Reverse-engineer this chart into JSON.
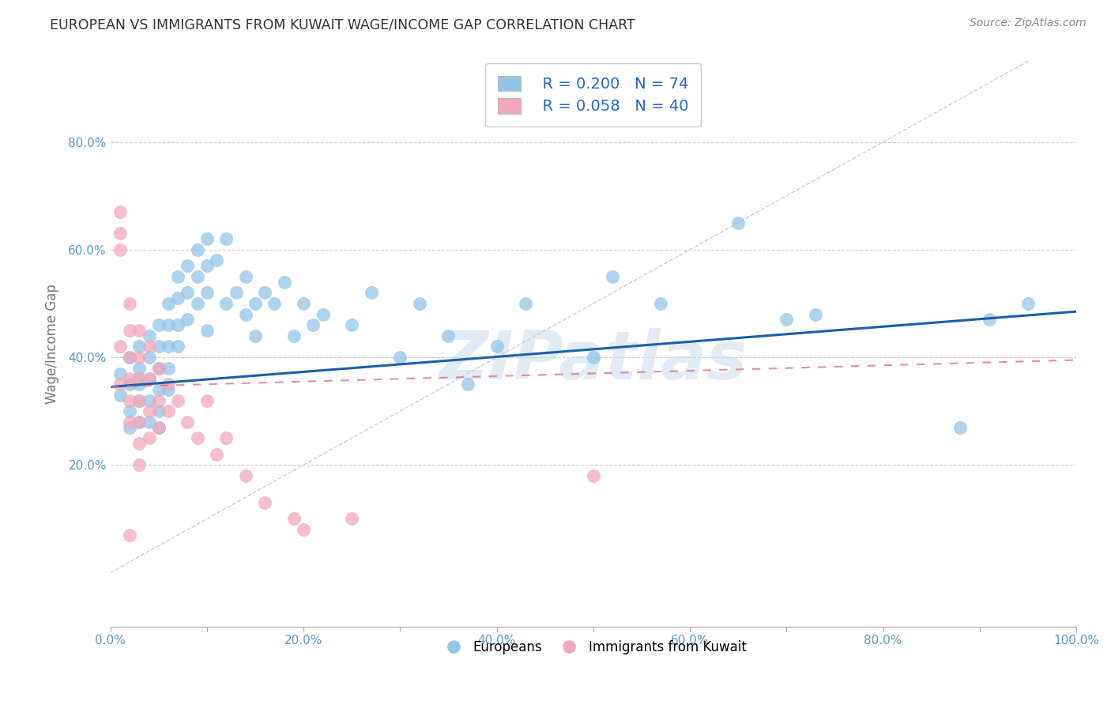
{
  "title": "EUROPEAN VS IMMIGRANTS FROM KUWAIT WAGE/INCOME GAP CORRELATION CHART",
  "source": "Source: ZipAtlas.com",
  "ylabel": "Wage/Income Gap",
  "xlabel": "",
  "xlim": [
    0.0,
    1.0
  ],
  "ylim": [
    -0.1,
    0.95
  ],
  "xtick_labels": [
    "0.0%",
    "",
    "20.0%",
    "",
    "40.0%",
    "",
    "60.0%",
    "",
    "80.0%",
    "",
    "100.0%"
  ],
  "xtick_vals": [
    0.0,
    0.1,
    0.2,
    0.3,
    0.4,
    0.5,
    0.6,
    0.7,
    0.8,
    0.9,
    1.0
  ],
  "ytick_labels": [
    "20.0%",
    "40.0%",
    "60.0%",
    "80.0%"
  ],
  "ytick_vals": [
    0.2,
    0.4,
    0.6,
    0.8
  ],
  "watermark": "ZIPatlas",
  "legend_r1": "R = 0.200",
  "legend_n1": "N = 74",
  "legend_r2": "R = 0.058",
  "legend_n2": "N = 40",
  "blue_color": "#92C5E8",
  "pink_color": "#F2A8BC",
  "blue_line_color": "#1A5FAB",
  "pink_line_color": "#E07090",
  "background_color": "#FFFFFF",
  "grid_color": "#CCCCCC",
  "europeans_x": [
    0.01,
    0.01,
    0.02,
    0.02,
    0.02,
    0.02,
    0.03,
    0.03,
    0.03,
    0.03,
    0.03,
    0.03,
    0.04,
    0.04,
    0.04,
    0.04,
    0.04,
    0.05,
    0.05,
    0.05,
    0.05,
    0.05,
    0.05,
    0.06,
    0.06,
    0.06,
    0.06,
    0.06,
    0.07,
    0.07,
    0.07,
    0.07,
    0.08,
    0.08,
    0.08,
    0.09,
    0.09,
    0.09,
    0.1,
    0.1,
    0.1,
    0.1,
    0.11,
    0.12,
    0.12,
    0.13,
    0.14,
    0.14,
    0.15,
    0.15,
    0.16,
    0.17,
    0.18,
    0.19,
    0.2,
    0.21,
    0.22,
    0.25,
    0.27,
    0.3,
    0.32,
    0.35,
    0.37,
    0.4,
    0.43,
    0.5,
    0.52,
    0.57,
    0.65,
    0.7,
    0.73,
    0.88,
    0.91,
    0.95
  ],
  "europeans_y": [
    0.37,
    0.33,
    0.4,
    0.35,
    0.3,
    0.27,
    0.42,
    0.38,
    0.35,
    0.32,
    0.28,
    0.36,
    0.44,
    0.4,
    0.36,
    0.32,
    0.28,
    0.46,
    0.42,
    0.38,
    0.34,
    0.3,
    0.27,
    0.5,
    0.46,
    0.42,
    0.38,
    0.34,
    0.55,
    0.51,
    0.46,
    0.42,
    0.57,
    0.52,
    0.47,
    0.6,
    0.55,
    0.5,
    0.62,
    0.57,
    0.52,
    0.45,
    0.58,
    0.62,
    0.5,
    0.52,
    0.55,
    0.48,
    0.5,
    0.44,
    0.52,
    0.5,
    0.54,
    0.44,
    0.5,
    0.46,
    0.48,
    0.46,
    0.52,
    0.4,
    0.5,
    0.44,
    0.35,
    0.42,
    0.5,
    0.4,
    0.55,
    0.5,
    0.65,
    0.47,
    0.48,
    0.27,
    0.47,
    0.5
  ],
  "kuwait_x": [
    0.01,
    0.01,
    0.01,
    0.01,
    0.01,
    0.02,
    0.02,
    0.02,
    0.02,
    0.02,
    0.02,
    0.02,
    0.03,
    0.03,
    0.03,
    0.03,
    0.03,
    0.03,
    0.03,
    0.04,
    0.04,
    0.04,
    0.04,
    0.05,
    0.05,
    0.05,
    0.06,
    0.06,
    0.07,
    0.08,
    0.09,
    0.1,
    0.11,
    0.12,
    0.14,
    0.16,
    0.19,
    0.2,
    0.25,
    0.5
  ],
  "kuwait_y": [
    0.63,
    0.67,
    0.6,
    0.42,
    0.35,
    0.5,
    0.45,
    0.4,
    0.36,
    0.32,
    0.28,
    0.07,
    0.45,
    0.4,
    0.36,
    0.32,
    0.28,
    0.24,
    0.2,
    0.42,
    0.36,
    0.3,
    0.25,
    0.38,
    0.32,
    0.27,
    0.35,
    0.3,
    0.32,
    0.28,
    0.25,
    0.32,
    0.22,
    0.25,
    0.18,
    0.13,
    0.1,
    0.08,
    0.1,
    0.18
  ]
}
